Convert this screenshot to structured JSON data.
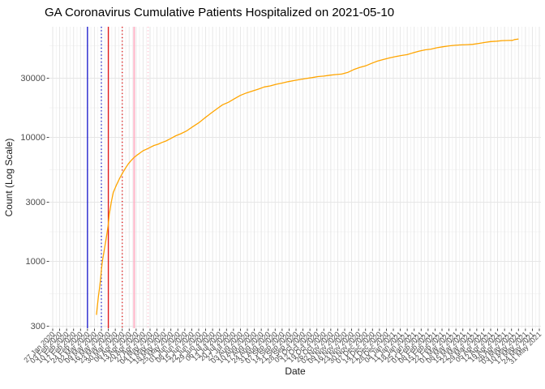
{
  "chart_data": {
    "type": "line",
    "title": "GA Coronavirus Cumulative Patients Hospitalized on 2021-05-10",
    "xlabel": "Date",
    "ylabel": "Count (Log Scale)",
    "as_of_date": "2021-05-10",
    "grid": "on",
    "legend": "none",
    "y_axis": {
      "scale": "log10",
      "tick_values": [
        300,
        1000,
        3000,
        10000,
        30000
      ],
      "tick_labels": [
        "300",
        "1000",
        "3000",
        "10000",
        "30000"
      ],
      "minor_values": [
        548,
        1732,
        5477,
        17321,
        54772
      ],
      "range_approx": [
        290,
        78000
      ]
    },
    "x_axis": {
      "range_approx": [
        "2020-01-25",
        "2021-06-01"
      ],
      "tick_dates": [
        "2020-01-27",
        "2020-02-03",
        "2020-02-10",
        "2020-02-17",
        "2020-02-24",
        "2020-03-02",
        "2020-03-09",
        "2020-03-16",
        "2020-03-23",
        "2020-03-30",
        "2020-04-06",
        "2020-04-13",
        "2020-04-20",
        "2020-04-27",
        "2020-05-04",
        "2020-05-11",
        "2020-05-18",
        "2020-05-25",
        "2020-06-01",
        "2020-06-08",
        "2020-06-15",
        "2020-06-22",
        "2020-06-29",
        "2020-07-06",
        "2020-07-13",
        "2020-07-20",
        "2020-07-27",
        "2020-08-03",
        "2020-08-10",
        "2020-08-17",
        "2020-08-24",
        "2020-08-31",
        "2020-09-07",
        "2020-09-14",
        "2020-09-21",
        "2020-09-28",
        "2020-10-05",
        "2020-10-12",
        "2020-10-19",
        "2020-10-26",
        "2020-11-02",
        "2020-11-09",
        "2020-11-16",
        "2020-11-23",
        "2020-11-30",
        "2020-12-07",
        "2020-12-14",
        "2020-12-21",
        "2020-12-28",
        "2021-01-04",
        "2021-01-11",
        "2021-01-18",
        "2021-01-25",
        "2021-02-01",
        "2021-02-08",
        "2021-02-15",
        "2021-02-22",
        "2021-03-01",
        "2021-03-08",
        "2021-03-15",
        "2021-03-22",
        "2021-03-29",
        "2021-04-05",
        "2021-04-12",
        "2021-04-19",
        "2021-04-26",
        "2021-05-03",
        "2021-05-10",
        "2021-05-17",
        "2021-05-24",
        "2021-05-31"
      ],
      "tick_labels": [
        "27 Jan 2020",
        "03 Feb 2020",
        "10 Feb 2020",
        "17 Feb 2020",
        "24 Feb 2020",
        "02 Mar 2020",
        "09 Mar 2020",
        "16 Mar 2020",
        "23 Mar 2020",
        "30 Mar 2020",
        "06 Apr 2020",
        "13 Apr 2020",
        "20 Apr 2020",
        "27 Apr 2020",
        "04 May 2020",
        "11 May 2020",
        "18 May 2020",
        "25 May 2020",
        "01 Jun 2020",
        "08 Jun 2020",
        "15 Jun 2020",
        "22 Jun 2020",
        "29 Jun 2020",
        "06 Jul 2020",
        "13 Jul 2020",
        "20 Jul 2020",
        "27 Jul 2020",
        "03 Aug 2020",
        "10 Aug 2020",
        "17 Aug 2020",
        "24 Aug 2020",
        "31 Aug 2020",
        "07 Sep 2020",
        "14 Sep 2020",
        "21 Sep 2020",
        "28 Sep 2020",
        "05 Oct 2020",
        "12 Oct 2020",
        "19 Oct 2020",
        "26 Oct 2020",
        "02 Nov 2020",
        "09 Nov 2020",
        "16 Nov 2020",
        "23 Nov 2020",
        "30 Nov 2020",
        "07 Dec 2020",
        "14 Dec 2020",
        "21 Dec 2020",
        "28 Dec 2020",
        "04 Jan 2021",
        "11 Jan 2021",
        "18 Jan 2021",
        "25 Jan 2021",
        "01 Feb 2021",
        "08 Feb 2021",
        "15 Feb 2021",
        "22 Feb 2021",
        "01 Mar 2021",
        "08 Mar 2021",
        "15 Mar 2021",
        "22 Mar 2021",
        "29 Mar 2021",
        "05 Apr 2021",
        "12 Apr 2021",
        "19 Apr 2021",
        "26 Apr 2021",
        "03 May 2021",
        "10 May 2021",
        "17 May 2021",
        "24 May 2021",
        "31 May 2021"
      ]
    },
    "reference_lines": [
      {
        "date": "2020-03-02",
        "color": "#2323CD",
        "style": "solid",
        "width": 1.4
      },
      {
        "date": "2020-03-16",
        "color": "#2323CD",
        "style": "dotted",
        "width": 1.5
      },
      {
        "date": "2020-03-23",
        "color": "#E01B1B",
        "style": "solid",
        "width": 1.4
      },
      {
        "date": "2020-04-06",
        "color": "#E01B1B",
        "style": "dotted",
        "width": 1.5
      },
      {
        "date": "2020-04-18",
        "color": "#FFB3C6",
        "style": "solid",
        "width": 2.0
      },
      {
        "date": "2020-05-02",
        "color": "#FFC9D6",
        "style": "dotted",
        "width": 1.8
      }
    ],
    "series": [
      {
        "name": "cumulative-patients-hospitalized",
        "color": "#FFA500",
        "points": [
          [
            "2020-03-11",
            370
          ],
          [
            "2020-03-12",
            440
          ],
          [
            "2020-03-13",
            520
          ],
          [
            "2020-03-14",
            600
          ],
          [
            "2020-03-15",
            700
          ],
          [
            "2020-03-16",
            850
          ],
          [
            "2020-03-17",
            1000
          ],
          [
            "2020-03-19",
            1250
          ],
          [
            "2020-03-21",
            1550
          ],
          [
            "2020-03-23",
            2000
          ],
          [
            "2020-03-24",
            2400
          ],
          [
            "2020-03-26",
            3000
          ],
          [
            "2020-03-28",
            3600
          ],
          [
            "2020-03-31",
            4100
          ],
          [
            "2020-04-03",
            4600
          ],
          [
            "2020-04-06",
            5100
          ],
          [
            "2020-04-09",
            5600
          ],
          [
            "2020-04-12",
            6100
          ],
          [
            "2020-04-15",
            6500
          ],
          [
            "2020-04-18",
            6900
          ],
          [
            "2020-04-21",
            7200
          ],
          [
            "2020-04-24",
            7500
          ],
          [
            "2020-04-27",
            7800
          ],
          [
            "2020-04-30",
            8000
          ],
          [
            "2020-05-04",
            8300
          ],
          [
            "2020-05-08",
            8600
          ],
          [
            "2020-05-12",
            8800
          ],
          [
            "2020-05-16",
            9100
          ],
          [
            "2020-05-20",
            9350
          ],
          [
            "2020-05-25",
            9800
          ],
          [
            "2020-05-30",
            10300
          ],
          [
            "2020-06-04",
            10700
          ],
          [
            "2020-06-10",
            11300
          ],
          [
            "2020-06-16",
            12200
          ],
          [
            "2020-06-22",
            13100
          ],
          [
            "2020-06-28",
            14300
          ],
          [
            "2020-07-04",
            15600
          ],
          [
            "2020-07-10",
            16900
          ],
          [
            "2020-07-16",
            18300
          ],
          [
            "2020-07-22",
            19200
          ],
          [
            "2020-07-28",
            20500
          ],
          [
            "2020-08-03",
            21800
          ],
          [
            "2020-08-09",
            22800
          ],
          [
            "2020-08-15",
            23600
          ],
          [
            "2020-08-21",
            24500
          ],
          [
            "2020-08-27",
            25500
          ],
          [
            "2020-09-02",
            26000
          ],
          [
            "2020-09-08",
            26800
          ],
          [
            "2020-09-14",
            27400
          ],
          [
            "2020-09-20",
            28100
          ],
          [
            "2020-09-26",
            28700
          ],
          [
            "2020-10-02",
            29300
          ],
          [
            "2020-10-08",
            29800
          ],
          [
            "2020-10-14",
            30300
          ],
          [
            "2020-10-20",
            30900
          ],
          [
            "2020-10-26",
            31200
          ],
          [
            "2020-11-01",
            31700
          ],
          [
            "2020-11-07",
            32100
          ],
          [
            "2020-11-13",
            32400
          ],
          [
            "2020-11-19",
            33400
          ],
          [
            "2020-11-25",
            35200
          ],
          [
            "2020-12-01",
            36600
          ],
          [
            "2020-12-07",
            37700
          ],
          [
            "2020-12-13",
            39500
          ],
          [
            "2020-12-19",
            41200
          ],
          [
            "2020-12-25",
            42500
          ],
          [
            "2020-12-31",
            43700
          ],
          [
            "2021-01-06",
            44800
          ],
          [
            "2021-01-12",
            45700
          ],
          [
            "2021-01-18",
            46500
          ],
          [
            "2021-01-24",
            48100
          ],
          [
            "2021-01-30",
            49600
          ],
          [
            "2021-02-05",
            50800
          ],
          [
            "2021-02-11",
            51500
          ],
          [
            "2021-02-17",
            52800
          ],
          [
            "2021-02-23",
            53800
          ],
          [
            "2021-03-01",
            54700
          ],
          [
            "2021-03-07",
            55300
          ],
          [
            "2021-03-13",
            55700
          ],
          [
            "2021-03-19",
            55900
          ],
          [
            "2021-03-25",
            56300
          ],
          [
            "2021-03-31",
            57200
          ],
          [
            "2021-04-06",
            58300
          ],
          [
            "2021-04-12",
            59200
          ],
          [
            "2021-04-18",
            59700
          ],
          [
            "2021-04-24",
            60300
          ],
          [
            "2021-04-30",
            60500
          ],
          [
            "2021-05-04",
            60600
          ],
          [
            "2021-05-06",
            61500
          ],
          [
            "2021-05-10",
            62100
          ]
        ]
      }
    ],
    "colors": {
      "line": "#FFA500",
      "major_grid": "#E6E6E6",
      "minor_grid": "#F0F0F0",
      "tick_text": "#4D4D4D",
      "title_text": "#000000"
    }
  }
}
